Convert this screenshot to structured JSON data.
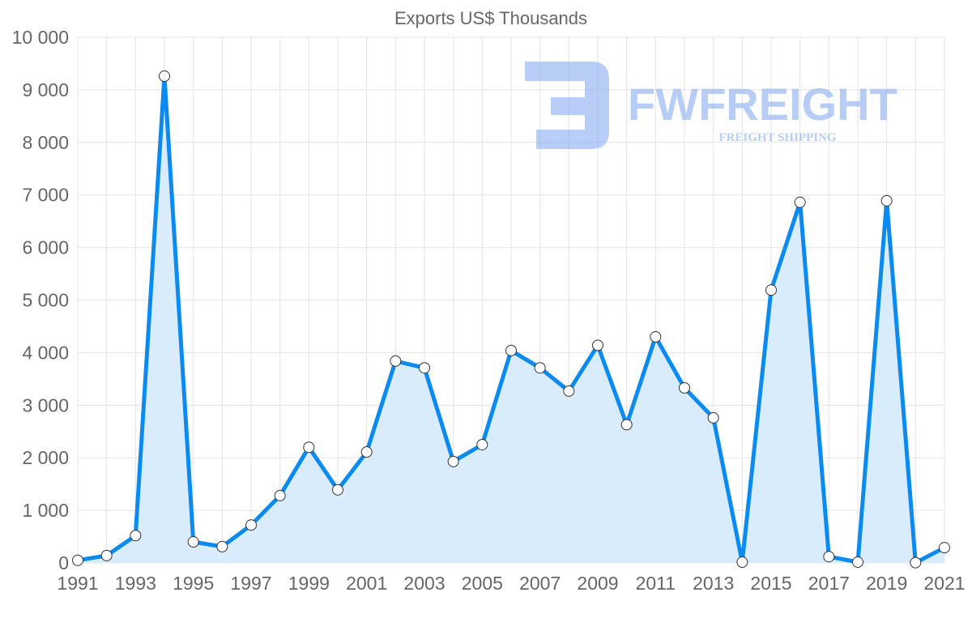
{
  "watermark": {
    "brand": "FWFREIGHT",
    "tagline": "FREIGHT SHIPPING"
  },
  "colors": {
    "line": "#0b8af0",
    "fill": "#d9ecfc",
    "grid": "#e4e4e4",
    "point_fill": "#ffffff",
    "watermark": "#7fa6ee"
  },
  "chart_data": {
    "type": "area",
    "title": "Exports US$ Thousands",
    "xlabel": "",
    "ylabel": "",
    "ylim": [
      0,
      10000
    ],
    "yticks": [
      "0",
      "1 000",
      "2 000",
      "3 000",
      "4 000",
      "5 000",
      "6 000",
      "7 000",
      "8 000",
      "9 000",
      "10 000"
    ],
    "xticks": [
      "1991",
      "1993",
      "1995",
      "1997",
      "1999",
      "2001",
      "2003",
      "2005",
      "2007",
      "2009",
      "2011",
      "2013",
      "2015",
      "2017",
      "2019",
      "2021"
    ],
    "grid": true,
    "x": [
      1991,
      1992,
      1993,
      1994,
      1995,
      1996,
      1997,
      1998,
      1999,
      2000,
      2001,
      2002,
      2003,
      2004,
      2005,
      2006,
      2007,
      2008,
      2009,
      2010,
      2011,
      2012,
      2013,
      2014,
      2015,
      2016,
      2017,
      2018,
      2019,
      2020,
      2021
    ],
    "series": [
      {
        "name": "Exports US$ Thousands",
        "values": [
          50,
          140,
          520,
          9260,
          400,
          310,
          720,
          1280,
          2200,
          1390,
          2110,
          3840,
          3710,
          1930,
          2250,
          4040,
          3710,
          3270,
          4140,
          2630,
          4300,
          3330,
          2760,
          15,
          5190,
          6860,
          120,
          15,
          6890,
          5,
          290
        ]
      }
    ]
  }
}
